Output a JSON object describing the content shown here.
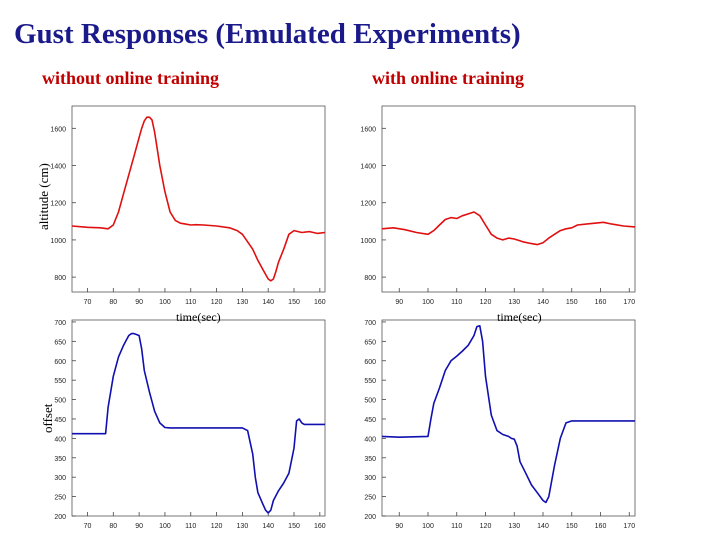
{
  "slide": {
    "title": "Gust Responses (Emulated Experiments)",
    "left_heading": "without online training",
    "right_heading": "with online training",
    "ylabel_top": "altitude (cm)",
    "ylabel_bottom": "offset",
    "xlabel_left": "time(sec)",
    "xlabel_right": "time(sec)"
  },
  "colors": {
    "title": "#1b1a8a",
    "heading": "#c00000",
    "altitude_line": "#e01010",
    "offset_line": "#1010b0"
  },
  "chart_data": [
    {
      "id": "altitude-without",
      "type": "line",
      "xlim": [
        64,
        162
      ],
      "ylim": [
        720,
        1720
      ],
      "xticks": [
        70,
        80,
        90,
        100,
        110,
        120,
        130,
        140,
        150,
        160
      ],
      "yticks": [
        800,
        1000,
        1200,
        1400,
        1600
      ],
      "ytick_labels": [
        "800",
        "1000",
        "1200",
        "1400",
        "1600"
      ],
      "xtick_labels": [
        "70",
        "80",
        "90",
        "100",
        "110",
        "120",
        "130",
        "140",
        "150",
        "160"
      ],
      "show_x_tick_labels": true,
      "x": [
        64,
        70,
        75,
        78,
        80,
        82,
        84,
        86,
        88,
        90,
        91,
        92,
        93,
        94,
        95,
        96,
        98,
        100,
        102,
        104,
        106,
        108,
        110,
        112,
        115,
        120,
        125,
        128,
        130,
        132,
        134,
        136,
        138,
        140,
        141,
        142,
        143,
        144,
        146,
        148,
        150,
        153,
        156,
        159,
        162
      ],
      "y": [
        1075,
        1068,
        1065,
        1060,
        1080,
        1150,
        1250,
        1350,
        1450,
        1550,
        1600,
        1640,
        1660,
        1660,
        1645,
        1580,
        1400,
        1260,
        1150,
        1105,
        1090,
        1085,
        1080,
        1082,
        1080,
        1075,
        1065,
        1050,
        1030,
        990,
        950,
        890,
        840,
        790,
        780,
        790,
        830,
        880,
        950,
        1030,
        1050,
        1040,
        1045,
        1035,
        1040
      ],
      "series": [
        {
          "name": "",
          "color": "#e01010"
        }
      ]
    },
    {
      "id": "altitude-with",
      "type": "line",
      "xlim": [
        84,
        172
      ],
      "ylim": [
        720,
        1720
      ],
      "xticks": [
        90,
        100,
        110,
        120,
        130,
        140,
        150,
        160,
        170
      ],
      "yticks": [
        800,
        1000,
        1200,
        1400,
        1600
      ],
      "ytick_labels": [
        "800",
        "1000",
        "1200",
        "1400",
        "1600"
      ],
      "xtick_labels": [
        "90",
        "100",
        "110",
        "120",
        "130",
        "140",
        "150",
        "160",
        "170"
      ],
      "show_x_tick_labels": true,
      "x": [
        84,
        88,
        92,
        96,
        100,
        102,
        104,
        106,
        108,
        110,
        112,
        114,
        116,
        118,
        120,
        122,
        124,
        126,
        128,
        130,
        133,
        136,
        138,
        140,
        142,
        144,
        146,
        148,
        150,
        152,
        155,
        158,
        161,
        164,
        168,
        172
      ],
      "y": [
        1060,
        1065,
        1055,
        1040,
        1030,
        1050,
        1080,
        1110,
        1120,
        1115,
        1130,
        1140,
        1150,
        1130,
        1080,
        1030,
        1010,
        1000,
        1010,
        1005,
        990,
        980,
        975,
        985,
        1010,
        1030,
        1050,
        1060,
        1065,
        1080,
        1085,
        1090,
        1095,
        1085,
        1075,
        1070
      ],
      "series": [
        {
          "name": "",
          "color": "#e01010"
        }
      ]
    },
    {
      "id": "offset-without",
      "type": "line",
      "xlim": [
        64,
        162
      ],
      "ylim": [
        200,
        705
      ],
      "xticks": [
        70,
        80,
        90,
        100,
        110,
        120,
        130,
        140,
        150,
        160
      ],
      "yticks": [
        200,
        250,
        300,
        350,
        400,
        450,
        500,
        550,
        600,
        650,
        700
      ],
      "ytick_labels": [
        "200",
        "250",
        "300",
        "350",
        "400",
        "450",
        "500",
        "550",
        "600",
        "650",
        "700"
      ],
      "xtick_labels": [
        "70",
        "80",
        "90",
        "100",
        "110",
        "120",
        "130",
        "140",
        "150",
        "160"
      ],
      "show_x_tick_labels": true,
      "x": [
        64,
        70,
        77,
        78,
        80,
        82,
        84,
        86,
        87,
        88,
        90,
        91,
        92,
        94,
        96,
        98,
        100,
        102,
        110,
        120,
        130,
        132,
        134,
        135,
        136,
        138,
        139,
        140,
        141,
        142,
        144,
        146,
        148,
        150,
        151,
        152,
        153,
        154,
        162
      ],
      "y": [
        412,
        412,
        412,
        480,
        560,
        610,
        640,
        665,
        670,
        670,
        665,
        630,
        575,
        520,
        470,
        440,
        428,
        427,
        427,
        427,
        427,
        420,
        360,
        300,
        260,
        230,
        215,
        208,
        215,
        240,
        265,
        285,
        310,
        375,
        445,
        450,
        440,
        436,
        436
      ],
      "series": [
        {
          "name": "",
          "color": "#1010b0"
        }
      ]
    },
    {
      "id": "offset-with",
      "type": "line",
      "xlim": [
        84,
        172
      ],
      "ylim": [
        200,
        705
      ],
      "xticks": [
        90,
        100,
        110,
        120,
        130,
        140,
        150,
        160,
        170
      ],
      "yticks": [
        200,
        250,
        300,
        350,
        400,
        450,
        500,
        550,
        600,
        650,
        700
      ],
      "ytick_labels": [
        "200",
        "250",
        "300",
        "350",
        "400",
        "450",
        "500",
        "550",
        "600",
        "650",
        "700"
      ],
      "xtick_labels": [
        "90",
        "100",
        "110",
        "120",
        "130",
        "140",
        "150",
        "160",
        "170"
      ],
      "show_x_tick_labels": true,
      "x": [
        84,
        90,
        100,
        101,
        102,
        104,
        106,
        108,
        110,
        112,
        114,
        116,
        117,
        118,
        119,
        120,
        122,
        124,
        126,
        128,
        129,
        130,
        131,
        132,
        134,
        136,
        138,
        140,
        141,
        142,
        144,
        146,
        148,
        150,
        155,
        160,
        165,
        172
      ],
      "y": [
        405,
        403,
        405,
        450,
        490,
        530,
        575,
        600,
        612,
        625,
        640,
        665,
        688,
        690,
        650,
        560,
        460,
        420,
        410,
        405,
        400,
        398,
        380,
        340,
        310,
        280,
        260,
        240,
        235,
        250,
        330,
        400,
        440,
        445,
        445,
        445,
        445,
        445
      ],
      "series": [
        {
          "name": "",
          "color": "#1010b0"
        }
      ]
    }
  ]
}
